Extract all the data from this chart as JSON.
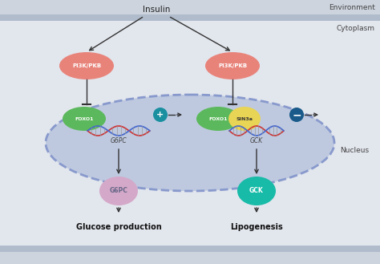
{
  "figsize": [
    4.74,
    3.29
  ],
  "dpi": 100,
  "bg_outer": "#cdd4de",
  "bg_cytoplasm": "#e2e6ed",
  "bg_nucleus_fill": "#bec9e0",
  "bg_nucleus_edge": "#8899cc",
  "color_pi3k": "#e8837a",
  "color_foxo1": "#5cb85c",
  "color_sin3a": "#e8d455",
  "color_g6pc_protein": "#d4a8c8",
  "color_gck_protein": "#18bba8",
  "color_plus_circle": "#1a8fa0",
  "color_minus_circle": "#1a5a8a",
  "color_arrow": "#333333",
  "color_dna_red": "#cc3333",
  "color_dna_blue": "#4466cc",
  "label_environment": "Environment",
  "label_cytoplasm": "Cytoplasm",
  "label_nucleus": "Nucleus",
  "label_insulin": "Insulin",
  "label_pi3k": "PI3K/PKB",
  "label_foxo1": "FOXO1",
  "label_sin3a": "SIN3a",
  "label_g6pc_gene": "G6PC",
  "label_gck_gene": "GCK",
  "label_g6pc_protein": "G6PC",
  "label_gck_protein": "GCK",
  "label_glucose": "Glucose production",
  "label_lipogenesis": "Lipogenesis"
}
